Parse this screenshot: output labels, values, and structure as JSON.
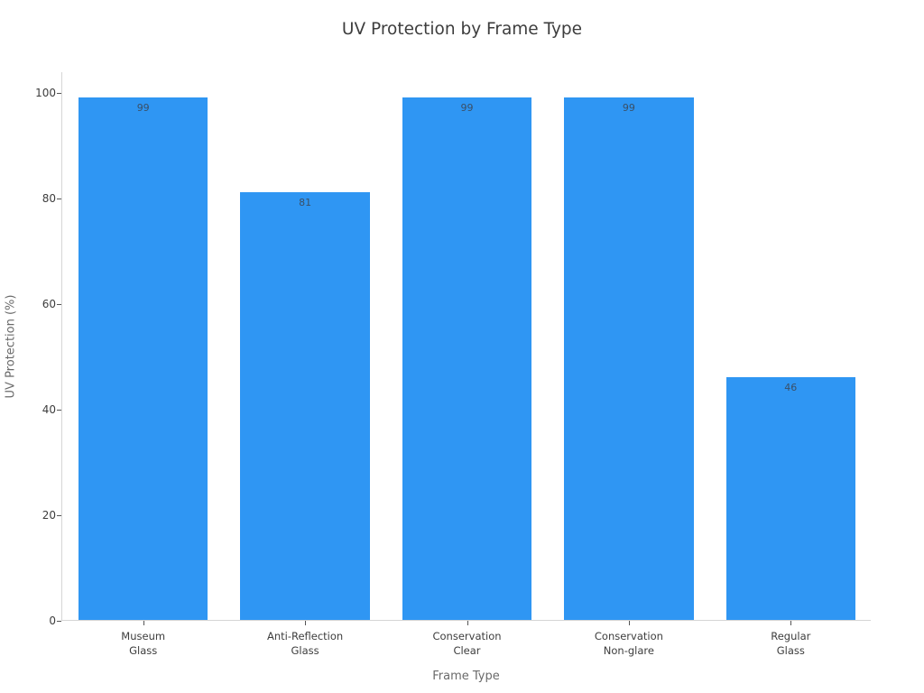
{
  "chart_data": {
    "type": "bar",
    "title": "UV Protection by Frame Type",
    "xlabel": "Frame Type",
    "ylabel": "UV Protection (%)",
    "categories": [
      "Museum Glass",
      "Anti-Reflection Glass",
      "Conservation Clear",
      "Conservation Non-glare",
      "Regular Glass"
    ],
    "category_lines": [
      [
        "Museum",
        "Glass"
      ],
      [
        "Anti-Reflection",
        "Glass"
      ],
      [
        "Conservation",
        "Clear"
      ],
      [
        "Conservation",
        "Non-glare"
      ],
      [
        "Regular",
        "Glass"
      ]
    ],
    "values": [
      99,
      81,
      99,
      99,
      46
    ],
    "bar_labels": [
      "99",
      "81",
      "99",
      "99",
      "46"
    ],
    "yticks": [
      0,
      20,
      40,
      60,
      80,
      100
    ],
    "ylim": [
      0,
      104
    ],
    "grid": false,
    "legend": "none",
    "colors": {
      "bar": "#2f96f3",
      "axis_line": "#d5d5d5",
      "tick": "#555555",
      "tick_label": "#3d3d3d",
      "axis_title": "#6a6a6a",
      "bar_label": "#3a5068",
      "title": "#3d3d3d",
      "background": "#ffffff"
    }
  }
}
